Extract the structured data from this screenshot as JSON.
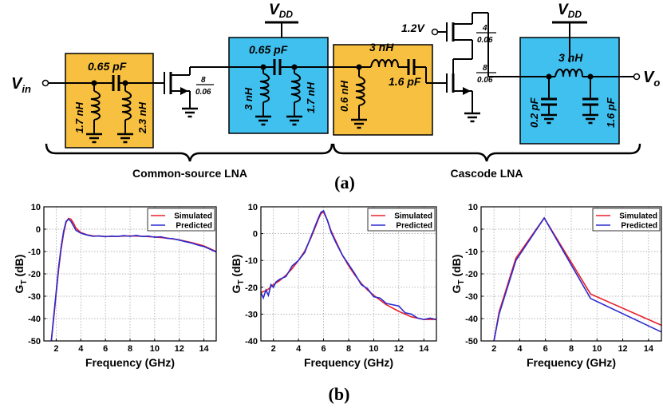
{
  "schematic": {
    "vin": "V",
    "vin_sub": "in",
    "vo": "V",
    "vo_sub": "o",
    "vdd": "V",
    "vdd_sub": "DD",
    "bias_voltage": "1.2V",
    "cs_block": {
      "series_cap": "0.65 pF",
      "shunt_l1": "1.7 nH",
      "shunt_l2": "2.3 nH"
    },
    "t1_size": {
      "w": "8",
      "l": "0.06"
    },
    "match_block": {
      "series_cap": "0.65 pF",
      "shunt_l1": "3 nH",
      "shunt_l2": "1.7 nH"
    },
    "cascode_in_block": {
      "series_l": "3 nH",
      "shunt_l": "0.6 nH",
      "series_cap": "1.6 pF"
    },
    "t_top_size": {
      "w": "4",
      "l": "0.06"
    },
    "t_bot_size": {
      "w": "8",
      "l": "0.06"
    },
    "out_block": {
      "series_l": "3 nH",
      "shunt_c1": "0.2 pF",
      "shunt_c2": "1.6 pF"
    },
    "section_cs": "Common-source LNA",
    "section_cascode": "Cascode LNA",
    "caption": "(a)"
  },
  "colors": {
    "yellow_block": "#f7c041",
    "blue_block": "#40c0ee",
    "simulated": "#e8202a",
    "predicted": "#2a2ad0"
  },
  "caption_b": "(b)",
  "chart_data": [
    {
      "type": "line",
      "xlabel": "Frequency (GHz)",
      "ylabel": "G",
      "ylabel_sub": "T",
      "ylabel_unit": " (dB)",
      "xlim": [
        1,
        15
      ],
      "ylim": [
        -50,
        10
      ],
      "xticks": [
        2,
        4,
        6,
        8,
        10,
        12,
        14
      ],
      "yticks": [
        10,
        0,
        -10,
        -20,
        -30,
        -40,
        -50
      ],
      "grid": true,
      "legend": "top-right",
      "series": [
        {
          "name": "Simulated",
          "x": [
            1.6,
            1.8,
            2.0,
            2.2,
            2.4,
            2.6,
            2.8,
            3.0,
            3.2,
            3.4,
            3.6,
            4.0,
            4.5,
            5.0,
            6.0,
            7.0,
            8.0,
            9.0,
            10.0,
            11.0,
            12.0,
            13.0,
            14.0,
            15.0
          ],
          "y": [
            -50,
            -40,
            -29,
            -18,
            -9,
            -2,
            3,
            4.8,
            4.5,
            2.8,
            0.5,
            -1.5,
            -2.5,
            -3,
            -3.3,
            -3.2,
            -3,
            -3.2,
            -3.5,
            -4,
            -4.8,
            -6,
            -7.5,
            -10
          ]
        },
        {
          "name": "Predicted",
          "x": [
            1.6,
            1.8,
            2.0,
            2.2,
            2.4,
            2.6,
            2.8,
            3.0,
            3.2,
            3.4,
            3.6,
            4.0,
            4.5,
            5.0,
            5.5,
            6.0,
            6.5,
            7.0,
            7.5,
            8.0,
            8.5,
            9.0,
            9.5,
            10.0,
            10.5,
            11.0,
            11.5,
            12.0,
            12.5,
            13.0,
            13.5,
            14.0,
            14.5,
            15.0
          ],
          "y": [
            -50,
            -39,
            -28,
            -17,
            -8,
            -1,
            3.5,
            4.5,
            3.5,
            1.5,
            -0.5,
            -1.8,
            -2.6,
            -3.2,
            -3.0,
            -3.4,
            -3.1,
            -3.3,
            -2.9,
            -3.2,
            -2.8,
            -3.3,
            -3.1,
            -3.6,
            -3.4,
            -4.1,
            -4.3,
            -4.9,
            -5.6,
            -6.2,
            -7.1,
            -7.8,
            -9.0,
            -10.2
          ]
        }
      ]
    },
    {
      "type": "line",
      "xlabel": "Frequency (GHz)",
      "ylabel": "G",
      "ylabel_sub": "T",
      "ylabel_unit": " (dB)",
      "xlim": [
        1,
        15
      ],
      "ylim": [
        -40,
        10
      ],
      "xticks": [
        2,
        4,
        6,
        8,
        10,
        12,
        14
      ],
      "yticks": [
        10,
        0,
        -10,
        -20,
        -30,
        -40
      ],
      "grid": true,
      "legend": "top-right",
      "series": [
        {
          "name": "Simulated",
          "x": [
            1.0,
            1.5,
            2.0,
            2.5,
            3.0,
            3.5,
            4.0,
            4.5,
            5.0,
            5.3,
            5.6,
            5.8,
            6.0,
            6.3,
            6.6,
            7.0,
            7.5,
            8.0,
            8.5,
            9.0,
            9.5,
            10.0,
            11.0,
            12.0,
            13.0,
            14.0,
            15.0
          ],
          "y": [
            -22,
            -21,
            -19,
            -17.5,
            -15.5,
            -13,
            -10,
            -6.5,
            -1.5,
            2,
            5.5,
            7.5,
            8,
            5,
            1,
            -3,
            -8,
            -12,
            -15.5,
            -18.5,
            -21,
            -23,
            -26.5,
            -29,
            -31,
            -32,
            -32
          ]
        },
        {
          "name": "Predicted",
          "x": [
            1.0,
            1.2,
            1.4,
            1.6,
            1.8,
            2.0,
            2.2,
            2.5,
            3.0,
            3.5,
            4.0,
            4.5,
            5.0,
            5.3,
            5.6,
            5.8,
            6.0,
            6.3,
            6.6,
            7.0,
            7.5,
            8.0,
            8.5,
            9.0,
            9.5,
            10.0,
            10.5,
            11.0,
            11.5,
            12.0,
            12.5,
            13.0,
            13.5,
            14.0,
            14.5,
            15.0
          ],
          "y": [
            -22,
            -24,
            -21,
            -23,
            -19,
            -20,
            -18,
            -17,
            -16,
            -12,
            -10,
            -7,
            -1,
            2.5,
            6,
            8,
            8.5,
            5,
            0.5,
            -3.5,
            -8,
            -11.5,
            -15,
            -19,
            -20.5,
            -23.5,
            -24,
            -26,
            -26.5,
            -27,
            -29.5,
            -30,
            -31.5,
            -32,
            -31.5,
            -32
          ]
        }
      ]
    },
    {
      "type": "line",
      "xlabel": "Frequency (GHz)",
      "ylabel": "G",
      "ylabel_sub": "T",
      "ylabel_unit": " (dB)",
      "xlim": [
        1,
        15
      ],
      "ylim": [
        -50,
        10
      ],
      "xticks": [
        2,
        4,
        6,
        8,
        10,
        12,
        14
      ],
      "yticks": [
        10,
        0,
        -10,
        -20,
        -30,
        -40,
        -50
      ],
      "grid": true,
      "legend": "top-right",
      "series": [
        {
          "name": "Simulated",
          "x": [
            2.0,
            2.4,
            3.7,
            5.9,
            9.5,
            15.0
          ],
          "y": [
            -50,
            -37,
            -13,
            5,
            -29,
            -43
          ]
        },
        {
          "name": "Predicted",
          "x": [
            2.0,
            2.4,
            3.7,
            5.9,
            9.5,
            15.0
          ],
          "y": [
            -50,
            -38,
            -14,
            5,
            -31,
            -46
          ]
        }
      ]
    }
  ]
}
